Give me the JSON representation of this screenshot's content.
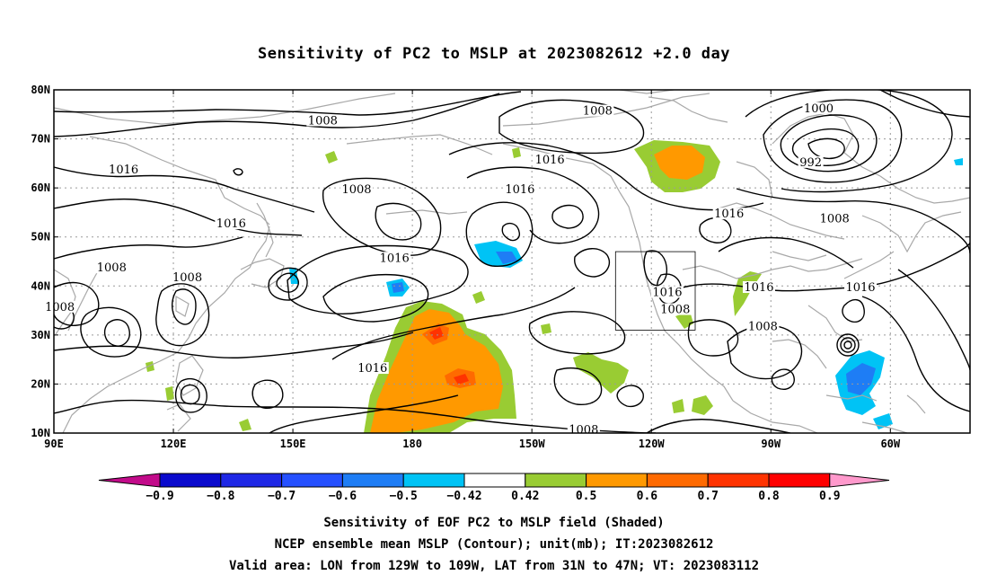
{
  "title": "Sensitivity of PC2 to MSLP at 2023082612 +2.0 day",
  "map": {
    "lat_labels": [
      "80N",
      "70N",
      "60N",
      "50N",
      "40N",
      "30N",
      "20N",
      "10N"
    ],
    "lon_labels": [
      "90E",
      "120E",
      "150E",
      "180",
      "150W",
      "120W",
      "90W",
      "60W"
    ],
    "lat_values": [
      80,
      70,
      60,
      50,
      40,
      30,
      20,
      10
    ],
    "lon_values": [
      90,
      120,
      150,
      180,
      210,
      240,
      270,
      300
    ],
    "extent": {
      "lon_min": 90,
      "lon_max": 320,
      "lat_min": 10,
      "lat_max": 80
    },
    "valid_box": {
      "lon_min": 231,
      "lon_max": 251,
      "lat_min": 31,
      "lat_max": 47
    },
    "contour_labels": [
      {
        "text": "1008",
        "lon": 157.5,
        "lat": 73.5
      },
      {
        "text": "1008",
        "lon": 226.5,
        "lat": 75.5
      },
      {
        "text": "1000",
        "lon": 282,
        "lat": 76
      },
      {
        "text": "1016",
        "lon": 107.5,
        "lat": 63.5
      },
      {
        "text": "1016",
        "lon": 214.5,
        "lat": 65.5
      },
      {
        "text": "992",
        "lon": 280,
        "lat": 65
      },
      {
        "text": "1008",
        "lon": 166,
        "lat": 59.5
      },
      {
        "text": "1016",
        "lon": 207,
        "lat": 59.5
      },
      {
        "text": "1016",
        "lon": 259.5,
        "lat": 54.5
      },
      {
        "text": "1008",
        "lon": 286,
        "lat": 53.5
      },
      {
        "text": "1016",
        "lon": 134.5,
        "lat": 52.5
      },
      {
        "text": "1016",
        "lon": 175.5,
        "lat": 45.5
      },
      {
        "text": "1008",
        "lon": 104.5,
        "lat": 43.5
      },
      {
        "text": "1008",
        "lon": 123.5,
        "lat": 41.5
      },
      {
        "text": "1016",
        "lon": 244,
        "lat": 38.5
      },
      {
        "text": "1016",
        "lon": 267,
        "lat": 39.5
      },
      {
        "text": "1016",
        "lon": 292.5,
        "lat": 39.5
      },
      {
        "text": "1008",
        "lon": 91.5,
        "lat": 35.5
      },
      {
        "text": "1008",
        "lon": 246,
        "lat": 35
      },
      {
        "text": "1008",
        "lon": 268,
        "lat": 31.5
      },
      {
        "text": "1016",
        "lon": 170,
        "lat": 23
      },
      {
        "text": "1008",
        "lon": 223,
        "lat": 10.5
      }
    ]
  },
  "colorbar": {
    "colors": [
      "#c20b8a",
      "#0a0acd",
      "#1f28e6",
      "#2550ff",
      "#1e7df5",
      "#00c3f5",
      "#ffffff",
      "#99cc33",
      "#ff9900",
      "#ff6a00",
      "#ff3300",
      "#ff0000",
      "#ff99cc"
    ],
    "labels": [
      "−0.9",
      "−0.8",
      "−0.7",
      "−0.6",
      "−0.5",
      "−0.42",
      "0.42",
      "0.5",
      "0.6",
      "0.7",
      "0.8",
      "0.9"
    ]
  },
  "captions": [
    "Sensitivity of EOF PC2 to MSLP field (Shaded)",
    "NCEP ensemble mean MSLP (Contour); unit(mb); IT:2023082612",
    "Valid area: LON from 129W to 109W, LAT from 31N to 47N; VT: 2023083112"
  ]
}
